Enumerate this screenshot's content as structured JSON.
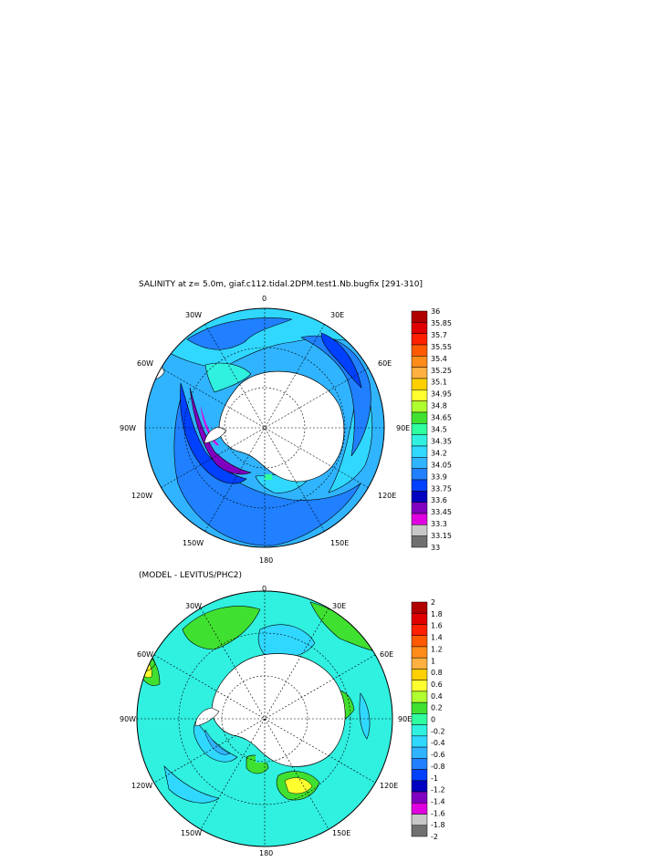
{
  "top_panel": {
    "title": "SALINITY at z=    5.0m, giaf.c112.tidal.2DPM.test1.Nb.bugfix [291-310]",
    "lon_labels": {
      "n": "0",
      "ne": "30E",
      "e1": "60E",
      "e": "90E",
      "se1": "120E",
      "se": "150E",
      "s": "180",
      "sw": "150W",
      "w1": "120W",
      "w": "90W",
      "nw1": "60W",
      "nw": "30W"
    },
    "colorbar": {
      "labels": [
        "36",
        "35.85",
        "35.7",
        "35.55",
        "35.4",
        "35.25",
        "35.1",
        "34.95",
        "34.8",
        "34.65",
        "34.5",
        "34.35",
        "34.2",
        "34.05",
        "33.9",
        "33.75",
        "33.6",
        "33.45",
        "33.3",
        "33.15",
        "33"
      ],
      "colors": [
        "#b00000",
        "#e00000",
        "#ff2000",
        "#ff5a00",
        "#ff8c1a",
        "#ffb040",
        "#ffd000",
        "#ffff30",
        "#b0ff30",
        "#40e030",
        "#30ffa0",
        "#30f0e0",
        "#30d8ff",
        "#30b4ff",
        "#2080ff",
        "#0040ff",
        "#0000c0",
        "#8000c0",
        "#e000e0",
        "#c8c8c8",
        "#707070"
      ]
    }
  },
  "bottom_panel": {
    "title": "(MODEL - LEVITUS/PHC2)",
    "lon_labels": {
      "n": "0",
      "ne": "30E",
      "e1": "60E",
      "e": "90E",
      "se1": "120E",
      "se": "150E",
      "s": "180",
      "sw": "150W",
      "w1": "120W",
      "w": "90W",
      "nw1": "60W",
      "nw": "30W"
    },
    "colorbar": {
      "labels": [
        "2",
        "1.8",
        "1.6",
        "1.4",
        "1.2",
        "1",
        "0.8",
        "0.6",
        "0.4",
        "0.2",
        "0",
        "-0.2",
        "-0.4",
        "-0.6",
        "-0.8",
        "-1",
        "-1.2",
        "-1.4",
        "-1.6",
        "-1.8",
        "-2"
      ],
      "colors": [
        "#b00000",
        "#e00000",
        "#ff2000",
        "#ff5a00",
        "#ff8c1a",
        "#ffb040",
        "#ffd000",
        "#ffff30",
        "#b0ff30",
        "#40e030",
        "#30ffa0",
        "#30f0e0",
        "#30d8ff",
        "#30b4ff",
        "#2080ff",
        "#0040ff",
        "#0000c0",
        "#8000c0",
        "#e000e0",
        "#c8c8c8",
        "#707070"
      ]
    }
  }
}
